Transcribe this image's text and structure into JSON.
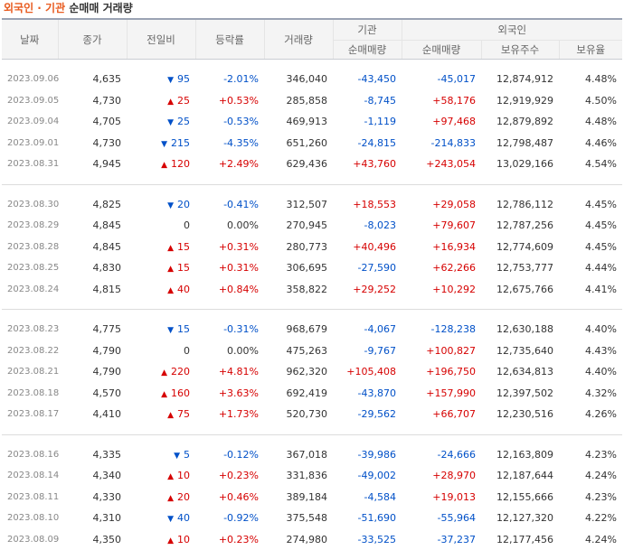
{
  "title": {
    "accent": "외국인 · 기관",
    "rest": "순매매 거래량"
  },
  "headers": {
    "date": "날짜",
    "close": "종가",
    "change": "전일비",
    "rate": "등락률",
    "volume": "거래량",
    "inst_group": "기관",
    "foreign_group": "외국인",
    "inst_net": "순매매량",
    "foreign_net": "순매매량",
    "holdings": "보유주수",
    "ratio": "보유율"
  },
  "colors": {
    "up": "#d60000",
    "down": "#0050c8",
    "accent": "#e85a1e"
  },
  "groups": [
    [
      {
        "date": "2023.09.06",
        "close": "4,635",
        "dir": "down",
        "change": "95",
        "rate": "-2.01%",
        "volume": "346,040",
        "inst": "-43,450",
        "foreign": "-45,017",
        "holdings": "12,874,912",
        "ratio": "4.48%"
      },
      {
        "date": "2023.09.05",
        "close": "4,730",
        "dir": "up",
        "change": "25",
        "rate": "+0.53%",
        "volume": "285,858",
        "inst": "-8,745",
        "foreign": "+58,176",
        "holdings": "12,919,929",
        "ratio": "4.50%"
      },
      {
        "date": "2023.09.04",
        "close": "4,705",
        "dir": "down",
        "change": "25",
        "rate": "-0.53%",
        "volume": "469,913",
        "inst": "-1,119",
        "foreign": "+97,468",
        "holdings": "12,879,892",
        "ratio": "4.48%"
      },
      {
        "date": "2023.09.01",
        "close": "4,730",
        "dir": "down",
        "change": "215",
        "rate": "-4.35%",
        "volume": "651,260",
        "inst": "-24,815",
        "foreign": "-214,833",
        "holdings": "12,798,487",
        "ratio": "4.46%"
      },
      {
        "date": "2023.08.31",
        "close": "4,945",
        "dir": "up",
        "change": "120",
        "rate": "+2.49%",
        "volume": "629,436",
        "inst": "+43,760",
        "foreign": "+243,054",
        "holdings": "13,029,166",
        "ratio": "4.54%"
      }
    ],
    [
      {
        "date": "2023.08.30",
        "close": "4,825",
        "dir": "down",
        "change": "20",
        "rate": "-0.41%",
        "volume": "312,507",
        "inst": "+18,553",
        "foreign": "+29,058",
        "holdings": "12,786,112",
        "ratio": "4.45%"
      },
      {
        "date": "2023.08.29",
        "close": "4,845",
        "dir": "flat",
        "change": "0",
        "rate": "0.00%",
        "volume": "270,945",
        "inst": "-8,023",
        "foreign": "+79,607",
        "holdings": "12,787,256",
        "ratio": "4.45%"
      },
      {
        "date": "2023.08.28",
        "close": "4,845",
        "dir": "up",
        "change": "15",
        "rate": "+0.31%",
        "volume": "280,773",
        "inst": "+40,496",
        "foreign": "+16,934",
        "holdings": "12,774,609",
        "ratio": "4.45%"
      },
      {
        "date": "2023.08.25",
        "close": "4,830",
        "dir": "up",
        "change": "15",
        "rate": "+0.31%",
        "volume": "306,695",
        "inst": "-27,590",
        "foreign": "+62,266",
        "holdings": "12,753,777",
        "ratio": "4.44%"
      },
      {
        "date": "2023.08.24",
        "close": "4,815",
        "dir": "up",
        "change": "40",
        "rate": "+0.84%",
        "volume": "358,822",
        "inst": "+29,252",
        "foreign": "+10,292",
        "holdings": "12,675,766",
        "ratio": "4.41%"
      }
    ],
    [
      {
        "date": "2023.08.23",
        "close": "4,775",
        "dir": "down",
        "change": "15",
        "rate": "-0.31%",
        "volume": "968,679",
        "inst": "-4,067",
        "foreign": "-128,238",
        "holdings": "12,630,188",
        "ratio": "4.40%"
      },
      {
        "date": "2023.08.22",
        "close": "4,790",
        "dir": "flat",
        "change": "0",
        "rate": "0.00%",
        "volume": "475,263",
        "inst": "-9,767",
        "foreign": "+100,827",
        "holdings": "12,735,640",
        "ratio": "4.43%"
      },
      {
        "date": "2023.08.21",
        "close": "4,790",
        "dir": "up",
        "change": "220",
        "rate": "+4.81%",
        "volume": "962,320",
        "inst": "+105,408",
        "foreign": "+196,750",
        "holdings": "12,634,813",
        "ratio": "4.40%"
      },
      {
        "date": "2023.08.18",
        "close": "4,570",
        "dir": "up",
        "change": "160",
        "rate": "+3.63%",
        "volume": "692,419",
        "inst": "-43,870",
        "foreign": "+157,990",
        "holdings": "12,397,502",
        "ratio": "4.32%"
      },
      {
        "date": "2023.08.17",
        "close": "4,410",
        "dir": "up",
        "change": "75",
        "rate": "+1.73%",
        "volume": "520,730",
        "inst": "-29,562",
        "foreign": "+66,707",
        "holdings": "12,230,516",
        "ratio": "4.26%"
      }
    ],
    [
      {
        "date": "2023.08.16",
        "close": "4,335",
        "dir": "down",
        "change": "5",
        "rate": "-0.12%",
        "volume": "367,018",
        "inst": "-39,986",
        "foreign": "-24,666",
        "holdings": "12,163,809",
        "ratio": "4.23%"
      },
      {
        "date": "2023.08.14",
        "close": "4,340",
        "dir": "up",
        "change": "10",
        "rate": "+0.23%",
        "volume": "331,836",
        "inst": "-49,002",
        "foreign": "+28,970",
        "holdings": "12,187,644",
        "ratio": "4.24%"
      },
      {
        "date": "2023.08.11",
        "close": "4,330",
        "dir": "up",
        "change": "20",
        "rate": "+0.46%",
        "volume": "389,184",
        "inst": "-4,584",
        "foreign": "+19,013",
        "holdings": "12,155,666",
        "ratio": "4.23%"
      },
      {
        "date": "2023.08.10",
        "close": "4,310",
        "dir": "down",
        "change": "40",
        "rate": "-0.92%",
        "volume": "375,548",
        "inst": "-51,690",
        "foreign": "-55,964",
        "holdings": "12,127,320",
        "ratio": "4.22%"
      },
      {
        "date": "2023.08.09",
        "close": "4,350",
        "dir": "up",
        "change": "10",
        "rate": "+0.23%",
        "volume": "274,980",
        "inst": "-33,525",
        "foreign": "-37,237",
        "holdings": "12,177,456",
        "ratio": "4.24%"
      }
    ]
  ]
}
